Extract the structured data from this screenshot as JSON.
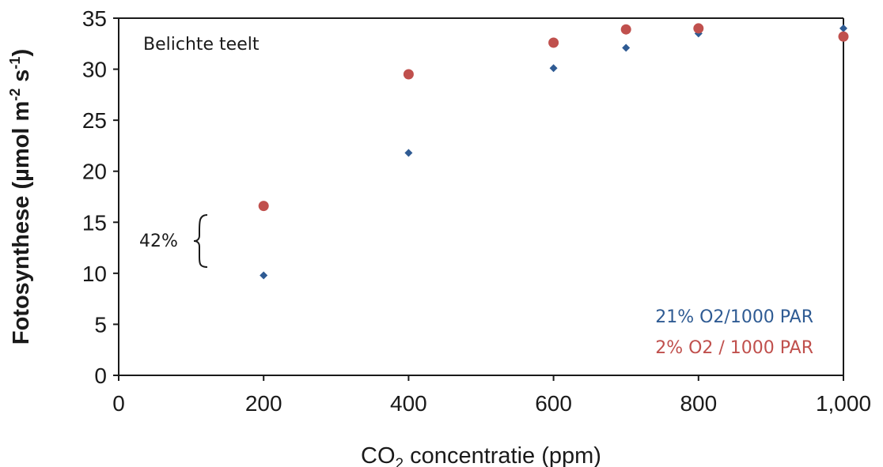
{
  "chart_data": {
    "type": "scatter",
    "title": "",
    "xlabel_prefix": "CO",
    "xlabel_sub": "2",
    "xlabel_suffix": " concentratie  (ppm)",
    "ylabel_main": "Fotosynthese (µmol m",
    "ylabel_sup1": "-2",
    "ylabel_mid": " s",
    "ylabel_sup2": "-1",
    "ylabel_end": ")",
    "xlim": [
      0,
      1000
    ],
    "ylim": [
      0,
      35
    ],
    "xticks": [
      0,
      200,
      400,
      600,
      800,
      1000
    ],
    "xtick_labels": [
      "0",
      "200",
      "400",
      "600",
      "800",
      "1,000"
    ],
    "yticks": [
      0,
      5,
      10,
      15,
      20,
      25,
      30,
      35
    ],
    "ytick_labels": [
      "0",
      "5",
      "10",
      "15",
      "20",
      "25",
      "30",
      "35"
    ],
    "grid": false,
    "legend_position": "bottom-right",
    "annotation_panel": "Belichte teelt",
    "annotation_bracket": "42%",
    "series": [
      {
        "name": "21% O2/1000 PAR",
        "color": "#2f5b93",
        "marker": "diamond",
        "x": [
          200,
          400,
          600,
          700,
          800,
          1000
        ],
        "y": [
          9.8,
          21.8,
          30.1,
          32.1,
          33.5,
          34.0
        ]
      },
      {
        "name": "2% O2 / 1000 PAR",
        "color": "#c0504d",
        "marker": "circle",
        "x": [
          200,
          400,
          600,
          700,
          800,
          1000
        ],
        "y": [
          16.6,
          29.5,
          32.6,
          33.9,
          34.0,
          33.2
        ]
      }
    ]
  }
}
